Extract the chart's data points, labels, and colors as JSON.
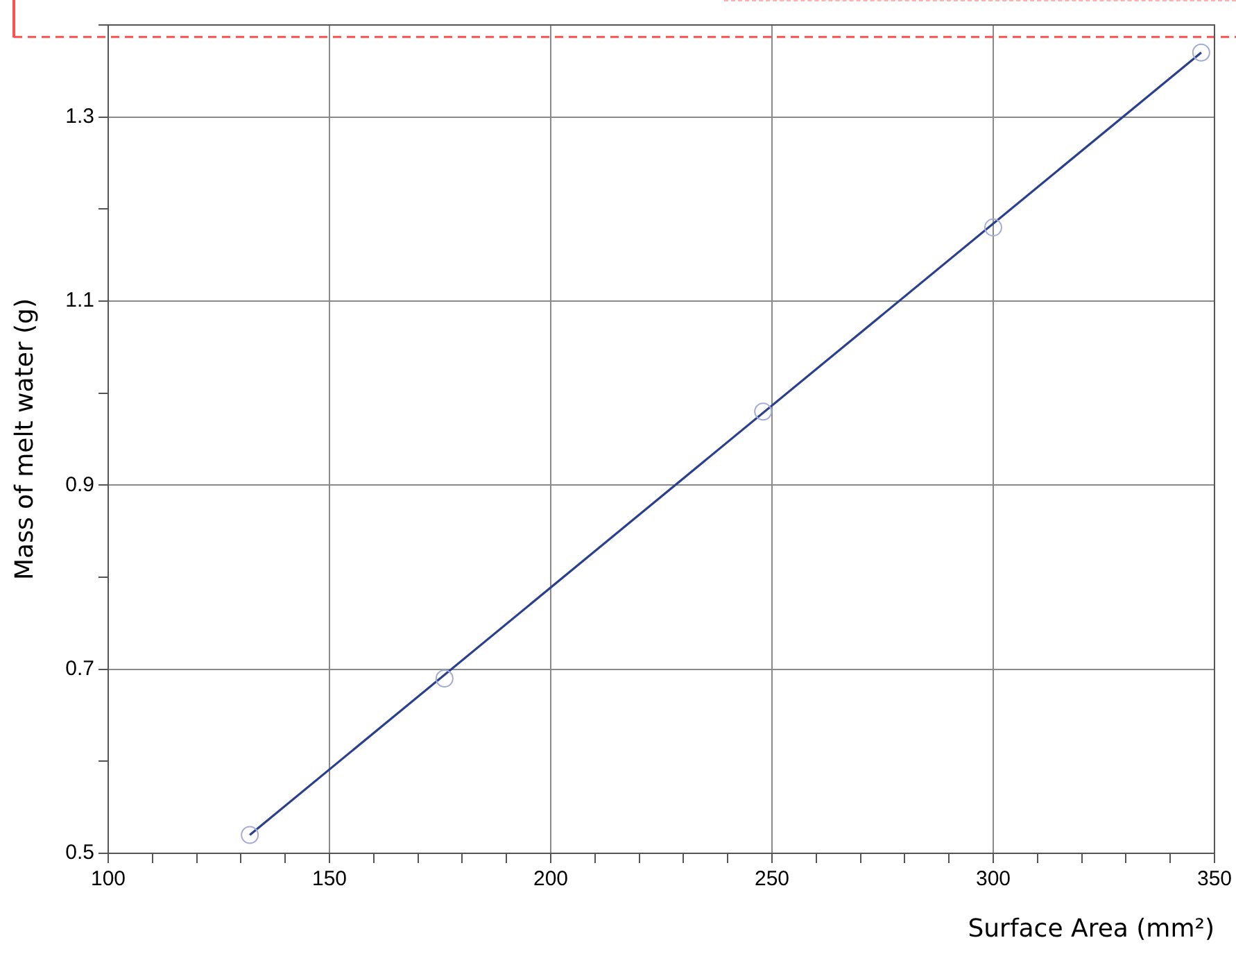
{
  "chart_data": {
    "type": "scatter",
    "xlabel": "Surface Area (mm²)",
    "ylabel": "Mass of melt water (g)",
    "xlim": [
      100,
      350
    ],
    "ylim": [
      0.5,
      1.4
    ],
    "xticks": [
      100,
      {
        "value": 110,
        "label": null
      },
      {
        "value": 120,
        "label": null
      },
      {
        "value": 130,
        "label": null
      },
      {
        "value": 140,
        "label": null
      },
      150,
      {
        "value": 160,
        "label": null
      },
      {
        "value": 170,
        "label": null
      },
      {
        "value": 180,
        "label": null
      },
      {
        "value": 190,
        "label": null
      },
      200,
      {
        "value": 210,
        "label": null
      },
      {
        "value": 220,
        "label": null
      },
      {
        "value": 230,
        "label": null
      },
      {
        "value": 240,
        "label": null
      },
      250,
      {
        "value": 260,
        "label": null
      },
      {
        "value": 270,
        "label": null
      },
      {
        "value": 280,
        "label": null
      },
      {
        "value": 290,
        "label": null
      },
      300,
      {
        "value": 310,
        "label": null
      },
      {
        "value": 320,
        "label": null
      },
      {
        "value": 330,
        "label": null
      },
      {
        "value": 340,
        "label": null
      },
      350
    ],
    "yticks": [
      0.5,
      {
        "value": 0.6,
        "label": null
      },
      0.7,
      {
        "value": 0.8,
        "label": null
      },
      0.9,
      {
        "value": 1.0,
        "label": null
      },
      1.1,
      {
        "value": 1.2,
        "label": null
      },
      1.3,
      {
        "value": 1.4,
        "label": null
      }
    ],
    "grid": true,
    "series": [
      {
        "type": "scatter",
        "marker": "circle",
        "color": "#a3abd9",
        "x": [
          132,
          176,
          248,
          300,
          347
        ],
        "values": [
          0.52,
          0.69,
          0.98,
          1.18,
          1.37
        ]
      },
      {
        "type": "line",
        "marker": "none",
        "color": "#2b3f8f",
        "x": [
          132,
          347
        ],
        "values": [
          0.52,
          1.37
        ]
      }
    ],
    "ref_lines": [
      {
        "axis": "y",
        "value": 1.387,
        "color": "#ff5050",
        "line_style": "dashed"
      }
    ]
  }
}
